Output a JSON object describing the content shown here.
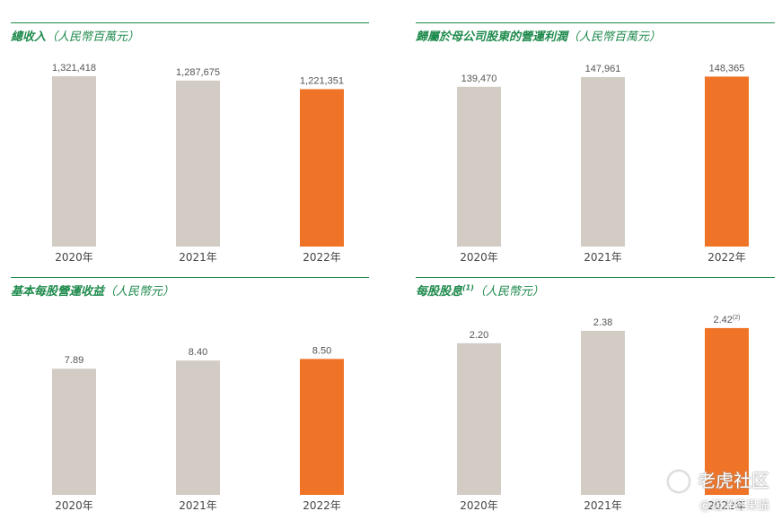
{
  "colors": {
    "bar_default": "#d2ccc5",
    "bar_highlight": "#f07427",
    "accent": "#1e8a4c"
  },
  "watermark": {
    "line1": "老虎社区",
    "line2": "@迈洋芒果猫"
  },
  "chart_data": [
    {
      "type": "bar",
      "title": "總收入",
      "unit": "（人民幣百萬元）",
      "categories": [
        "2020年",
        "2021年",
        "2022年"
      ],
      "values": [
        1321418,
        1287675,
        1221351
      ],
      "labels": [
        "1,321,418",
        "1,287,675",
        "1,221,351"
      ],
      "highlight_index": 2,
      "ylim": [
        0,
        1600000
      ]
    },
    {
      "type": "bar",
      "title": "歸屬於母公司股東的營運利潤",
      "unit": "（人民幣百萬元）",
      "categories": [
        "2020年",
        "2021年",
        "2022年"
      ],
      "values": [
        139470,
        147961,
        148365
      ],
      "labels": [
        "139,470",
        "147,961",
        "148,365"
      ],
      "highlight_index": 2,
      "ylim": [
        0,
        180000
      ]
    },
    {
      "type": "bar",
      "title": "基本每股營運收益",
      "unit": "（人民幣元）",
      "categories": [
        "2020年",
        "2021年",
        "2022年"
      ],
      "values": [
        7.89,
        8.4,
        8.5
      ],
      "labels": [
        "7.89",
        "8.40",
        "8.50"
      ],
      "highlight_index": 2,
      "ylim": [
        0,
        12.5
      ]
    },
    {
      "type": "bar",
      "title": "每股股息",
      "title_sup": "(1)",
      "unit": "（人民幣元）",
      "categories": [
        "2020年",
        "2021年",
        "2022年"
      ],
      "values": [
        2.2,
        2.38,
        2.42
      ],
      "labels": [
        "2.20",
        "2.38",
        "2.42"
      ],
      "label_sups": [
        "",
        "",
        "(2)"
      ],
      "highlight_index": 2,
      "ylim": [
        0,
        2.9
      ]
    }
  ]
}
